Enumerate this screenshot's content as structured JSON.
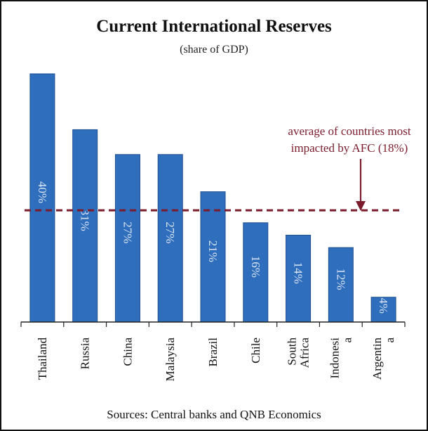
{
  "colors": {
    "bar": "#2f6ebd",
    "bar_edge": "#1f4f8f",
    "average_line": "#7b1c2c",
    "axis": "#222222",
    "bar_label": "#d8e4f5"
  },
  "chart_data": {
    "type": "bar",
    "title": "Current International Reserves",
    "subtitle": "(share of GDP)",
    "source": "Sources: Central banks and QNB Economics",
    "categories": [
      "Thailand",
      "Russia",
      "China",
      "Malaysia",
      "Brazil",
      "Chile",
      "South Africa",
      "Indonesia",
      "Argentina"
    ],
    "category_labels": [
      [
        "Thailand"
      ],
      [
        "Russia"
      ],
      [
        "China"
      ],
      [
        "Malaysia"
      ],
      [
        "Brazil"
      ],
      [
        "Chile"
      ],
      [
        "South",
        "Africa"
      ],
      [
        "Indonesi",
        "a"
      ],
      [
        "Argentin",
        "a"
      ]
    ],
    "values": [
      40,
      31,
      27,
      27,
      21,
      16,
      14,
      12,
      4
    ],
    "data_labels": [
      "40%",
      "31%",
      "27%",
      "27%",
      "21%",
      "16%",
      "14%",
      "12%",
      "4%"
    ],
    "ylim": [
      0,
      40
    ],
    "xlabel": "",
    "ylabel": "",
    "reference_line": {
      "value": 18,
      "label_lines": [
        "average of countries most",
        "impacted by AFC  (18%)"
      ]
    }
  }
}
